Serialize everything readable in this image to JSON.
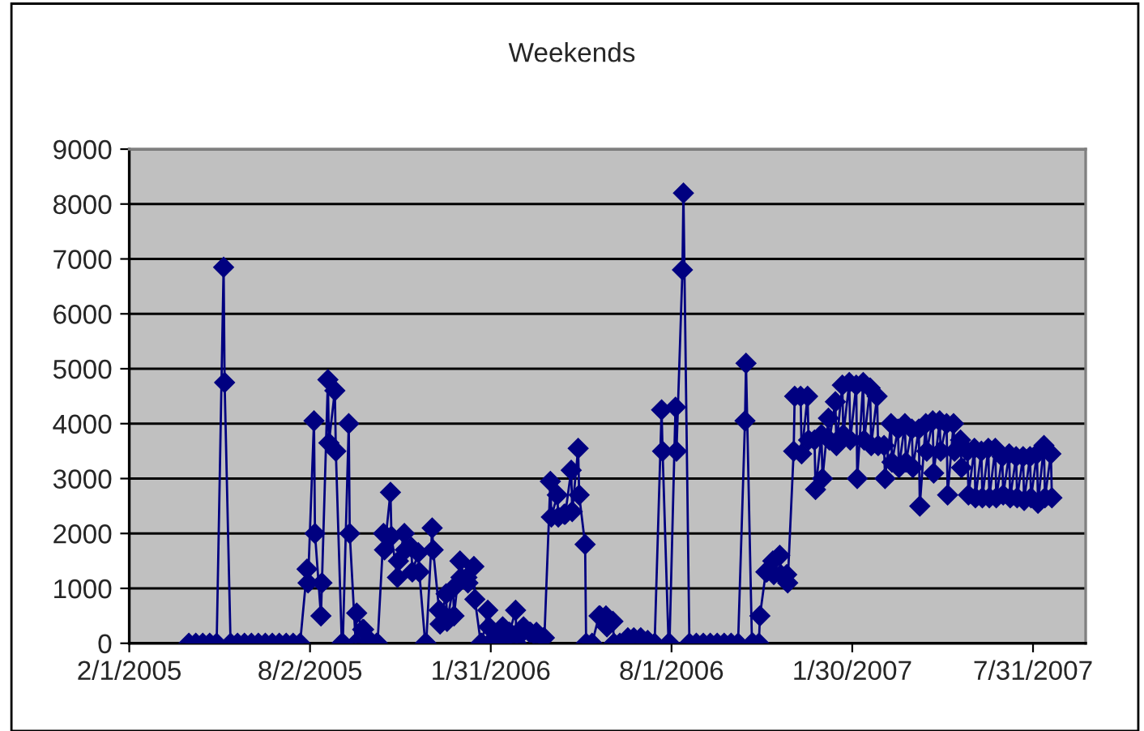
{
  "chart_data": {
    "type": "line",
    "title": "Weekends",
    "x": [
      "2005-04-02",
      "2005-04-09",
      "2005-04-16",
      "2005-04-23",
      "2005-04-30",
      "2005-05-07",
      "2005-05-08",
      "2005-05-14",
      "2005-05-21",
      "2005-05-28",
      "2005-06-04",
      "2005-06-11",
      "2005-06-18",
      "2005-06-25",
      "2005-07-02",
      "2005-07-09",
      "2005-07-16",
      "2005-07-23",
      "2005-07-30",
      "2005-07-31",
      "2005-08-06",
      "2005-08-07",
      "2005-08-13",
      "2005-08-14",
      "2005-08-20",
      "2005-08-21",
      "2005-08-27",
      "2005-08-28",
      "2005-09-03",
      "2005-09-04",
      "2005-09-10",
      "2005-09-11",
      "2005-09-17",
      "2005-09-18",
      "2005-09-24",
      "2005-09-25",
      "2005-10-01",
      "2005-10-02",
      "2005-10-08",
      "2005-10-09",
      "2005-10-15",
      "2005-10-16",
      "2005-10-22",
      "2005-10-23",
      "2005-10-29",
      "2005-10-30",
      "2005-11-05",
      "2005-11-06",
      "2005-11-12",
      "2005-11-13",
      "2005-11-19",
      "2005-11-20",
      "2005-11-26",
      "2005-11-27",
      "2005-12-03",
      "2005-12-04",
      "2005-12-10",
      "2005-12-11",
      "2005-12-17",
      "2005-12-18",
      "2005-12-24",
      "2005-12-25",
      "2005-12-31",
      "2006-01-01",
      "2006-01-07",
      "2006-01-08",
      "2006-01-14",
      "2006-01-15",
      "2006-01-21",
      "2006-01-22",
      "2006-01-28",
      "2006-01-29",
      "2006-02-04",
      "2006-02-05",
      "2006-02-11",
      "2006-02-12",
      "2006-02-18",
      "2006-02-19",
      "2006-02-25",
      "2006-02-26",
      "2006-03-04",
      "2006-03-05",
      "2006-03-11",
      "2006-03-12",
      "2006-03-18",
      "2006-03-19",
      "2006-03-25",
      "2006-03-26",
      "2006-04-01",
      "2006-04-02",
      "2006-04-08",
      "2006-04-09",
      "2006-04-15",
      "2006-04-16",
      "2006-04-22",
      "2006-04-23",
      "2006-04-29",
      "2006-04-30",
      "2006-05-06",
      "2006-05-07",
      "2006-05-13",
      "2006-05-20",
      "2006-05-21",
      "2006-05-27",
      "2006-05-28",
      "2006-06-03",
      "2006-06-04",
      "2006-06-10",
      "2006-06-17",
      "2006-06-18",
      "2006-06-24",
      "2006-07-01",
      "2006-07-08",
      "2006-07-09",
      "2006-07-15",
      "2006-07-22",
      "2006-07-23",
      "2006-07-29",
      "2006-07-30",
      "2006-08-05",
      "2006-08-06",
      "2006-08-12",
      "2006-08-13",
      "2006-08-19",
      "2006-08-26",
      "2006-09-02",
      "2006-09-09",
      "2006-09-16",
      "2006-09-23",
      "2006-09-30",
      "2006-10-07",
      "2006-10-14",
      "2006-10-15",
      "2006-10-21",
      "2006-10-22",
      "2006-10-28",
      "2006-10-29",
      "2006-11-04",
      "2006-11-05",
      "2006-11-11",
      "2006-11-12",
      "2006-11-18",
      "2006-11-19",
      "2006-11-25",
      "2006-11-26",
      "2006-12-02",
      "2006-12-03",
      "2006-12-09",
      "2006-12-10",
      "2006-12-16",
      "2006-12-17",
      "2006-12-23",
      "2006-12-24",
      "2006-12-30",
      "2006-12-31",
      "2007-01-06",
      "2007-01-07",
      "2007-01-13",
      "2007-01-14",
      "2007-01-20",
      "2007-01-21",
      "2007-01-27",
      "2007-01-28",
      "2007-02-03",
      "2007-02-04",
      "2007-02-10",
      "2007-02-11",
      "2007-02-17",
      "2007-02-18",
      "2007-02-24",
      "2007-02-25",
      "2007-03-03",
      "2007-03-04",
      "2007-03-10",
      "2007-03-11",
      "2007-03-17",
      "2007-03-18",
      "2007-03-24",
      "2007-03-25",
      "2007-03-31",
      "2007-04-01",
      "2007-04-07",
      "2007-04-08",
      "2007-04-14",
      "2007-04-15",
      "2007-04-21",
      "2007-04-22",
      "2007-04-28",
      "2007-04-29",
      "2007-05-05",
      "2007-05-06",
      "2007-05-12",
      "2007-05-13",
      "2007-05-19",
      "2007-05-20",
      "2007-05-26",
      "2007-05-27",
      "2007-06-02",
      "2007-06-03",
      "2007-06-09",
      "2007-06-10",
      "2007-06-16",
      "2007-06-17",
      "2007-06-23",
      "2007-06-24",
      "2007-06-30",
      "2007-07-01",
      "2007-07-07",
      "2007-07-08",
      "2007-07-14",
      "2007-07-15",
      "2007-07-21",
      "2007-07-22",
      "2007-07-28",
      "2007-07-29",
      "2007-08-04",
      "2007-08-05",
      "2007-08-11",
      "2007-08-12",
      "2007-08-18",
      "2007-08-19"
    ],
    "series": [
      {
        "color": "#000080",
        "values": [
          0,
          0,
          0,
          0,
          0,
          6850,
          4750,
          0,
          0,
          0,
          0,
          0,
          0,
          0,
          0,
          0,
          0,
          0,
          1350,
          1100,
          4050,
          2000,
          500,
          1100,
          4800,
          3650,
          4600,
          3500,
          0,
          0,
          4000,
          2000,
          0,
          550,
          250,
          250,
          50,
          0,
          0,
          0,
          2000,
          1700,
          2750,
          1950,
          1200,
          1500,
          2000,
          1700,
          1750,
          1300,
          1650,
          1300,
          0,
          0,
          2100,
          1700,
          600,
          350,
          900,
          400,
          1000,
          500,
          1500,
          1200,
          1200,
          1100,
          1400,
          800,
          0,
          0,
          600,
          300,
          100,
          0,
          0,
          300,
          200,
          200,
          600,
          0,
          200,
          300,
          200,
          200,
          200,
          100,
          100,
          100,
          2950,
          2300,
          2700,
          2300,
          2350,
          2350,
          3150,
          2400,
          3550,
          2700,
          1800,
          0,
          0,
          500,
          500,
          500,
          300,
          400,
          0,
          0,
          50,
          100,
          100,
          100,
          50,
          0,
          0,
          4250,
          3500,
          0,
          0,
          4300,
          3500,
          6800,
          8200,
          0,
          0,
          0,
          0,
          0,
          0,
          0,
          0,
          4050,
          5100,
          0,
          0,
          0,
          500,
          1300,
          1300,
          1500,
          1250,
          1600,
          1250,
          1250,
          1100,
          3500,
          4500,
          4500,
          3450,
          4500,
          3700,
          3700,
          2800,
          3800,
          3000,
          4100,
          3700,
          4400,
          3600,
          4700,
          3800,
          4750,
          3700,
          4700,
          3000,
          4750,
          3700,
          4650,
          3600,
          4500,
          3600,
          3600,
          3000,
          4000,
          3300,
          3900,
          3200,
          4000,
          3300,
          3900,
          3200,
          3900,
          2500,
          4000,
          3500,
          4050,
          3100,
          4050,
          3500,
          4000,
          2700,
          4000,
          3500,
          3700,
          3200,
          3500,
          2700,
          3550,
          2650,
          3500,
          2650,
          3550,
          2650,
          3550,
          2650,
          3400,
          2700,
          3450,
          2650,
          3400,
          2650,
          3400,
          2600,
          3400,
          2650,
          3450,
          2550,
          3600,
          2650,
          3450,
          2650
        ]
      }
    ],
    "xlim": [
      "2005-02-01",
      "2007-09-22"
    ],
    "xticks": [
      {
        "value": "2005-02-01",
        "label": "2/1/2005"
      },
      {
        "value": "2005-08-02",
        "label": "8/2/2005"
      },
      {
        "value": "2006-01-31",
        "label": "1/31/2006"
      },
      {
        "value": "2006-08-01",
        "label": "8/1/2006"
      },
      {
        "value": "2007-01-30",
        "label": "1/30/2007"
      },
      {
        "value": "2007-07-31",
        "label": "7/31/2007"
      }
    ],
    "ylim": [
      0,
      9000
    ],
    "yticks": [
      0,
      1000,
      2000,
      3000,
      4000,
      5000,
      6000,
      7000,
      8000,
      9000
    ],
    "grid": "y",
    "legend": false,
    "marker": "diamond",
    "line_style": "solid"
  }
}
